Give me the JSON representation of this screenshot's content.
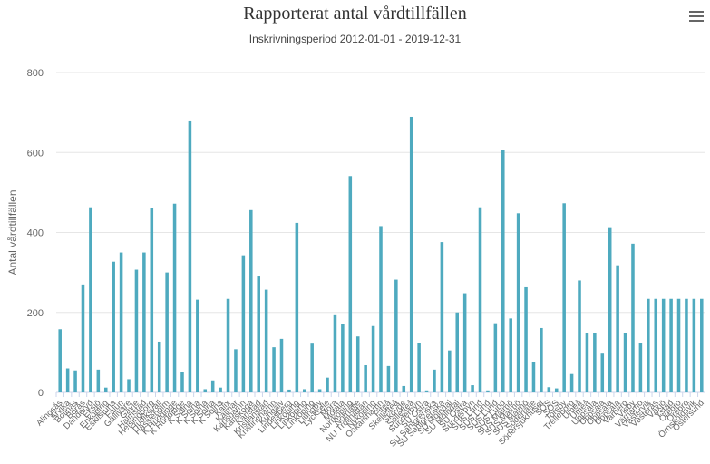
{
  "title": "Rapporterat antal vårdtillfällen",
  "subtitle": "Inskrivningsperiod 2012-01-01 - 2019-12-31",
  "icons": {
    "menu": "hamburger-menu-icon"
  },
  "colors": {
    "bar": "#4eaabf",
    "grid": "#e6e6e6",
    "axis": "#ccd6eb",
    "text": "#666666"
  },
  "chart_data": {
    "type": "bar",
    "ylabel": "Antal vårdtillfällen",
    "ylim": [
      0,
      800
    ],
    "yticks": [
      0,
      200,
      400,
      600,
      800
    ],
    "categories": [
      "Alingsås",
      "Arvika",
      "Bollnäs",
      "Borås",
      "Danderyd",
      "Eksjö",
      "Enköping",
      "Eskilstuna",
      "Falun",
      "Gällivare",
      "Gävle",
      "Halmstad",
      "Helsingborg",
      "Hudiksvall",
      "Hässleholm",
      "K Huddinge",
      "K Huddinge",
      "K Solna",
      "K Solna",
      "K Solna",
      "K Solna",
      "K Solna",
      "Kalix",
      "Kalmar",
      "Karlshamn",
      "Karlskoga",
      "Karlstad",
      "Kristianstad",
      "Kristinehamn",
      "Kungälv",
      "Lindesberg",
      "Linköping",
      "Linköping",
      "Linköping",
      "Ljungby",
      "Lycksele",
      "Mora",
      "Motala",
      "Norrköping",
      "Norrtälje",
      "NU Trollhättan",
      "Nyköping",
      "Oskarshamn",
      "Piteå",
      "Skellefteå",
      "Skövde",
      "Sollefteå",
      "Sunderbyn",
      "SU Östra",
      "SU Sahlgrenska",
      "SU Sahlgrenska",
      "SU Mölndal",
      "SU Mölndal",
      "SU Östra",
      "Sunderbyn",
      "SUS Lund",
      "SUS Lund",
      "SUS Lund",
      "SUS Lund",
      "SUS Malmö",
      "SUS Malmö",
      "SUS Malmö",
      "Södertälje",
      "Södersjukhuset",
      "SÖS",
      "SÖS",
      "Torsby",
      "Trelleborg",
      "Umeå",
      "Umeå",
      "Uppsala",
      "Uppsala",
      "Uppsala",
      "Uppsala",
      "Varberg",
      "Visby",
      "Värnamo",
      "Västervik",
      "Västerås",
      "Växjö",
      "Ystad",
      "Örebro",
      "Örebro",
      "Örnsköldsvik",
      "Östersund"
    ],
    "values": [
      158,
      60,
      55,
      270,
      463,
      57,
      12,
      327,
      350,
      33,
      307,
      350,
      461,
      127,
      300,
      472,
      50,
      680,
      232,
      8,
      30,
      12,
      234,
      108,
      343,
      456,
      290,
      257,
      113,
      134,
      7,
      424,
      8,
      122,
      8,
      37,
      193,
      172,
      541,
      140,
      68,
      166,
      416,
      66,
      282,
      16,
      689,
      124,
      5,
      57,
      376,
      105,
      200,
      248,
      18,
      463,
      5,
      173,
      607,
      185,
      448,
      263,
      75,
      161,
      13,
      10,
      473,
      46,
      280,
      148,
      148,
      97,
      411,
      318,
      148,
      372,
      123,
      234,
      234,
      234,
      234,
      234,
      234,
      234,
      234
    ]
  }
}
